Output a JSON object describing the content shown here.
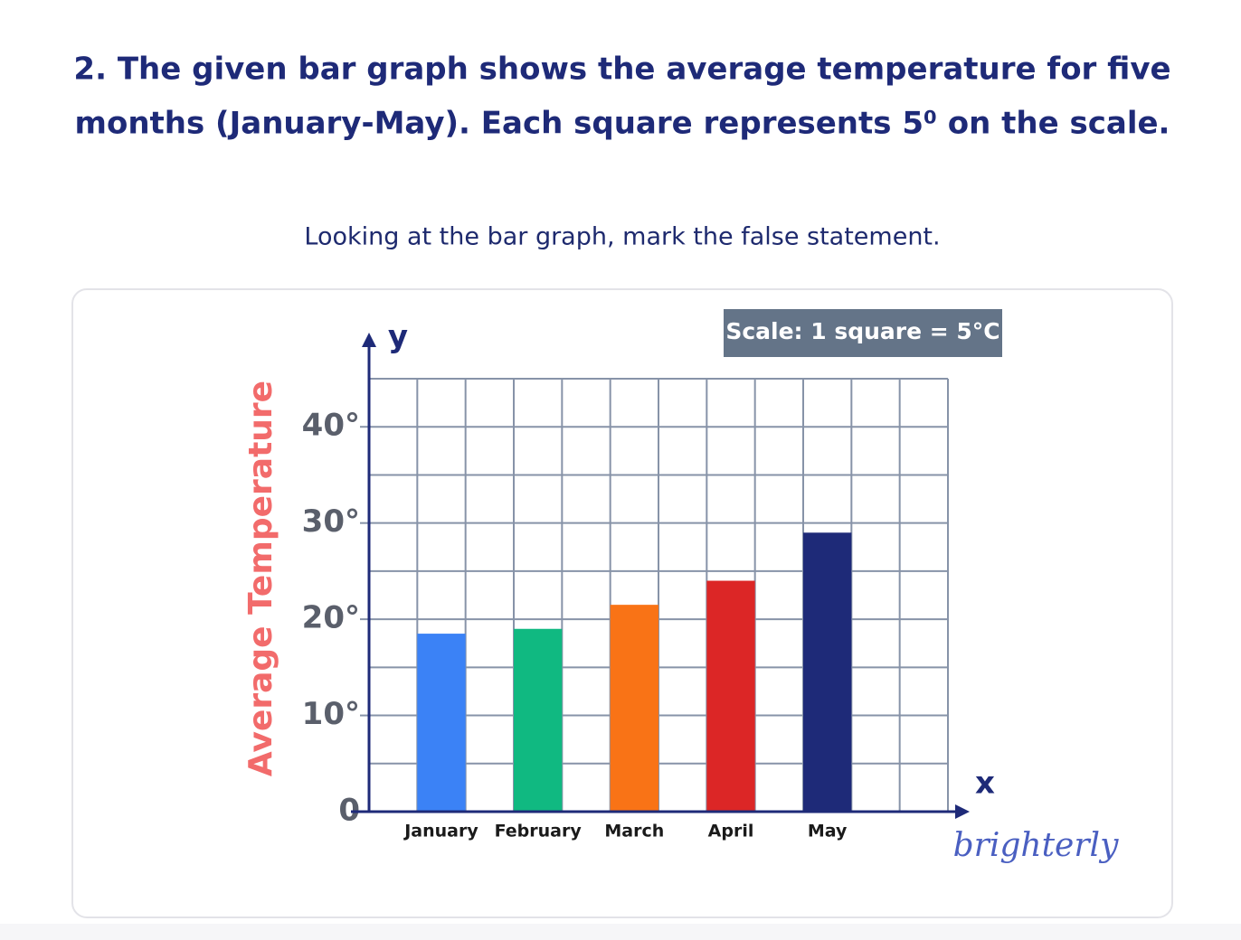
{
  "question": [
    "2. The given bar graph shows the average temperature for five",
    "months (January-May). Each square represents 5⁰ on the scale."
  ],
  "instruction": "Looking at the bar graph, mark the false statement.",
  "brand": "brighterly",
  "chart_data": {
    "type": "bar",
    "scale_note": "Scale: 1 square = 5°C",
    "y_label": "Average Temperature",
    "y_axis_letter": "y",
    "x_axis_letter": "x",
    "categories": [
      "January",
      "February",
      "March",
      "April",
      "May"
    ],
    "values": [
      18.5,
      19,
      21.5,
      24,
      29
    ],
    "colors": [
      "#3b82f6",
      "#10b981",
      "#f97316",
      "#dc2626",
      "#1e2a78"
    ],
    "ylim": [
      0,
      45
    ],
    "yticks": [
      0,
      {
        "value": 10,
        "label": "10°"
      },
      {
        "value": 20,
        "label": "20°"
      },
      {
        "value": 30,
        "label": "30°"
      },
      {
        "value": 40,
        "label": "40°"
      }
    ],
    "minor_yticks": [
      5,
      15,
      25,
      35,
      45
    ],
    "grid": true
  }
}
